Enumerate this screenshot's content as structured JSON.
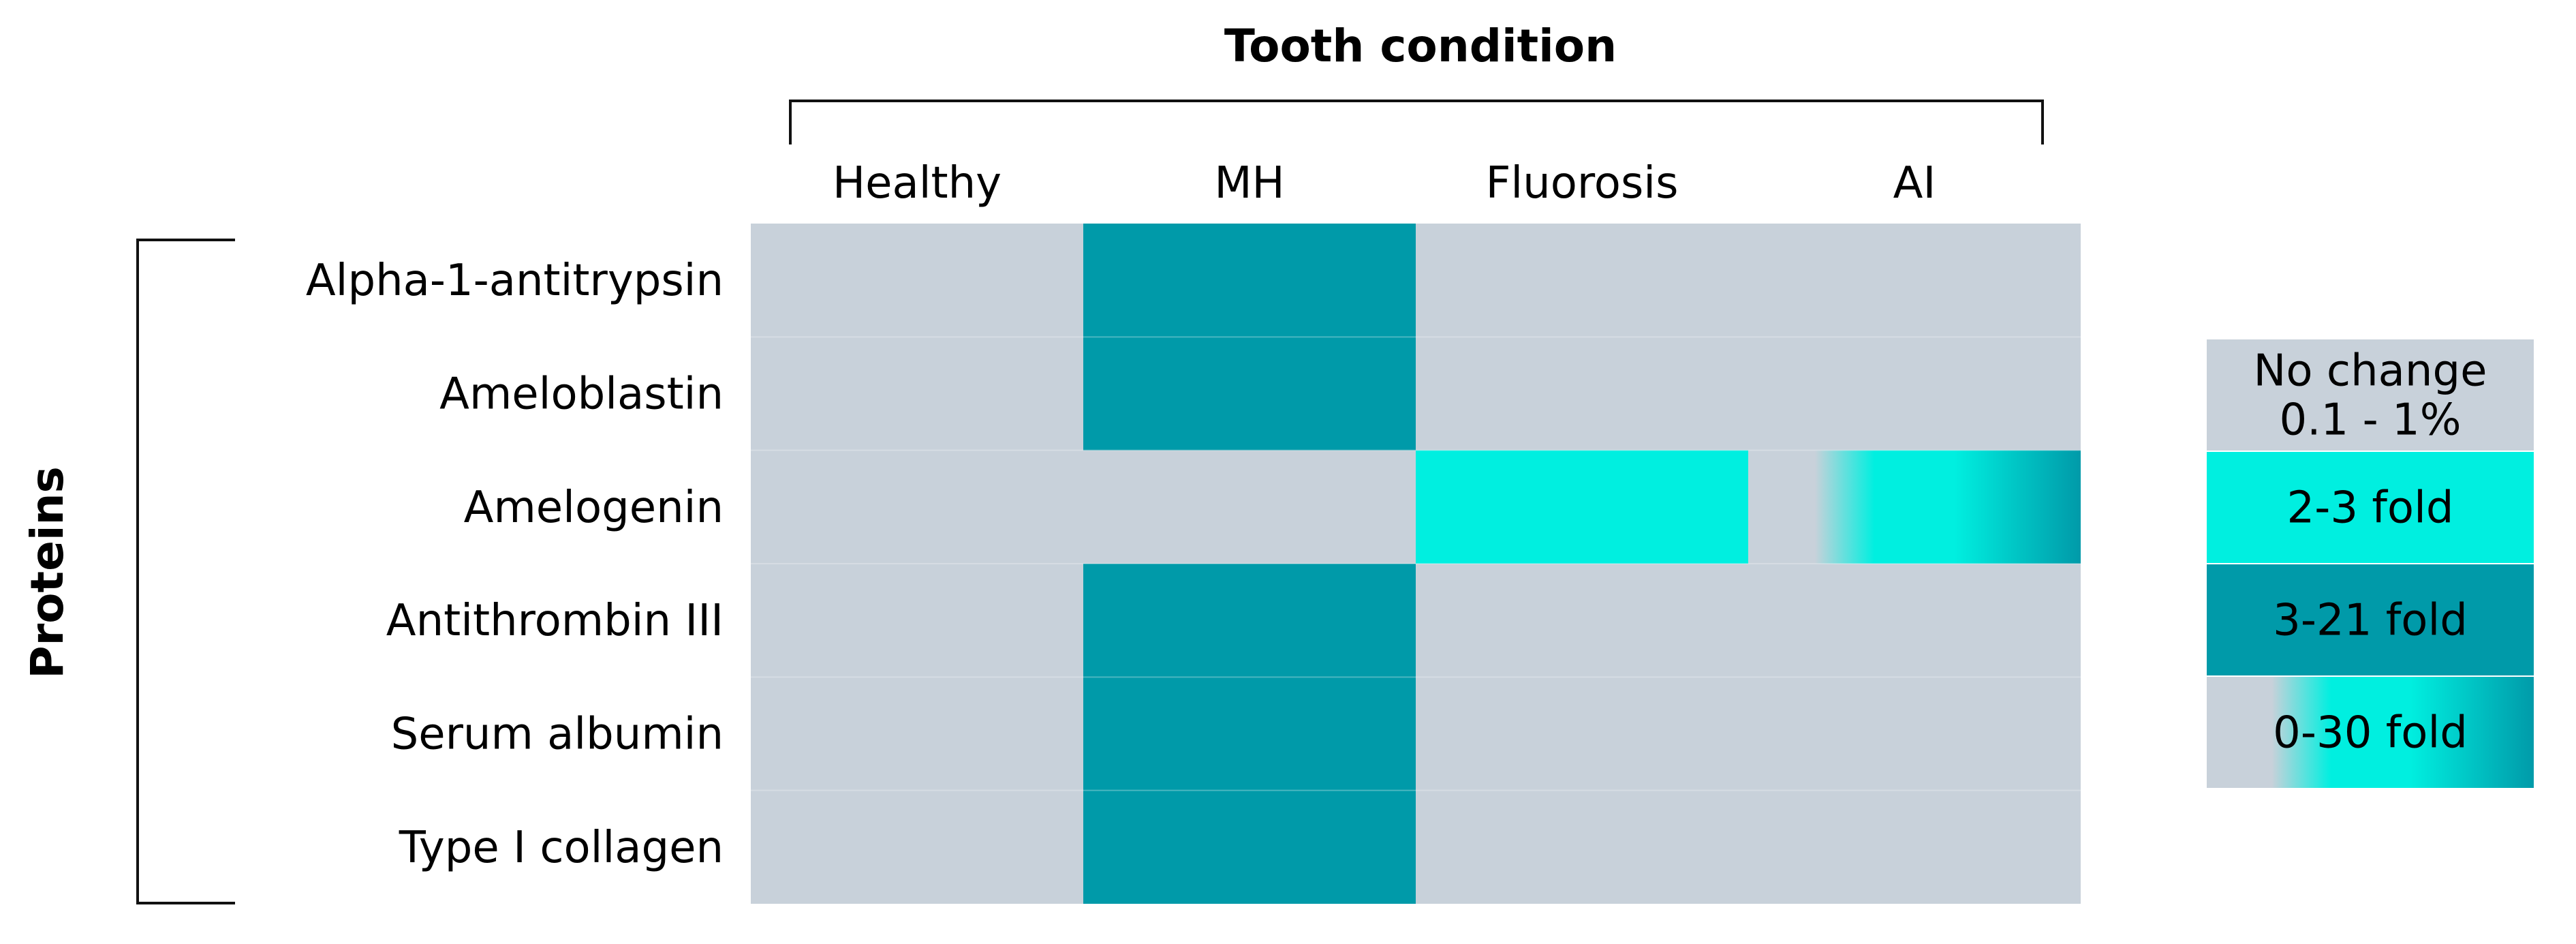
{
  "chart_data": {
    "type": "heatmap",
    "title": "Tooth condition",
    "ylabel": "Proteins",
    "columns": [
      "Healthy",
      "MH",
      "Fluorosis",
      "AI"
    ],
    "rows": [
      {
        "label": "Alpha-1-antitrypsin",
        "cells": [
          "none",
          "high",
          "none",
          "none"
        ]
      },
      {
        "label": "Ameloblastin",
        "cells": [
          "none",
          "high",
          "none",
          "none"
        ]
      },
      {
        "label": "Amelogenin",
        "cells": [
          "none",
          "none",
          "mid",
          "variable"
        ]
      },
      {
        "label": "Antithrombin III",
        "cells": [
          "none",
          "high",
          "none",
          "none"
        ]
      },
      {
        "label": "Serum albumin",
        "cells": [
          "none",
          "high",
          "none",
          "none"
        ]
      },
      {
        "label": "Type I collagen",
        "cells": [
          "none",
          "high",
          "none",
          "none"
        ]
      }
    ],
    "legend": [
      {
        "key": "none",
        "lines": [
          "No change",
          "0.1 - 1%"
        ]
      },
      {
        "key": "mid",
        "lines": [
          "2-3 fold"
        ]
      },
      {
        "key": "high",
        "lines": [
          "3-21 fold"
        ]
      },
      {
        "key": "variable",
        "lines": [
          "0-30 fold"
        ]
      }
    ],
    "colors": {
      "none": "#c8d1da",
      "mid": "#00efe0",
      "high": "#009aa9",
      "variable_gradient": [
        "#c8d1da",
        "#00efe0",
        "#009aa9"
      ]
    },
    "legend_position": "right"
  }
}
